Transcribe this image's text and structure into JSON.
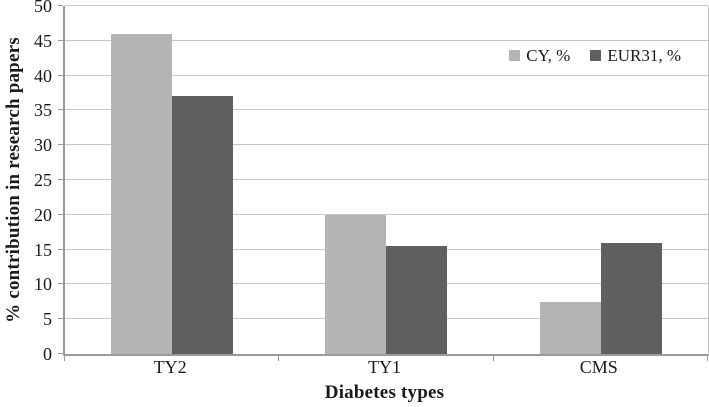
{
  "chart_data": {
    "type": "bar",
    "title": "",
    "categories": [
      "TY2",
      "TY1",
      "CMS"
    ],
    "series": [
      {
        "name": "CY, %",
        "color": "#b4b4b4",
        "values": [
          46,
          20,
          7.5
        ]
      },
      {
        "name": "EUR31, %",
        "color": "#5f5f5f",
        "values": [
          37,
          15.5,
          16
        ]
      }
    ],
    "xlabel": "Diabetes types",
    "ylabel": "% contribution in research papers",
    "ylim": [
      0,
      50
    ],
    "ytick_step": 5,
    "yticks": [
      0,
      5,
      10,
      15,
      20,
      25,
      30,
      35,
      40,
      45,
      50
    ],
    "grid": true,
    "legend_position": "top-right-inside"
  },
  "colors": {
    "background": "#ffffff",
    "gridline": "#c6c6c6",
    "axis": "#9a9a9a",
    "text": "#1a1a1a"
  }
}
